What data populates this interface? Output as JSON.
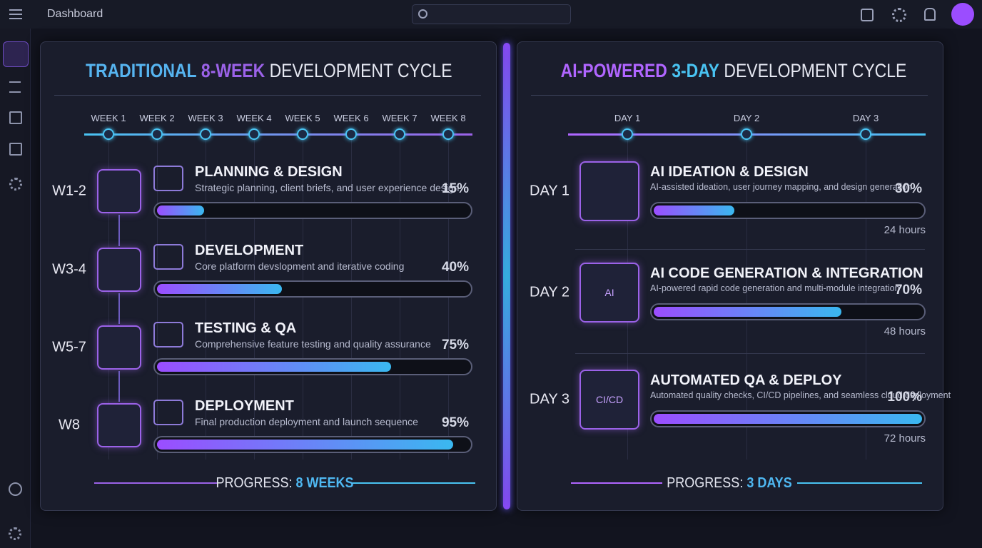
{
  "header": {
    "title": "Dashboard"
  },
  "panels": [
    {
      "title": [
        "TRADITIONAL",
        "8-WEEK",
        "DEVELOPMENT CYCLE"
      ],
      "timeline": [
        "WEEK 1",
        "WEEK 2",
        "WEEK 3",
        "WEEK 4",
        "WEEK 5",
        "WEEK 6",
        "WEEK 7",
        "WEEK 8"
      ],
      "stages": [
        {
          "period": "W1-2",
          "name": "PLANNING & DESIGN",
          "description": "Strategic planning, client briefs, and user experience design",
          "value": 15,
          "label": "15%"
        },
        {
          "period": "W3-4",
          "name": "DEVELOPMENT",
          "description": "Core platform devslopment and iterative coding",
          "value": 40,
          "label": "40%"
        },
        {
          "period": "W5-7",
          "name": "TESTING & QA",
          "description": "Comprehensive feature testing and quality assurance",
          "value": 75,
          "label": "75%"
        },
        {
          "period": "W8",
          "name": "DEPLOYMENT",
          "description": "Final production deployment and launch sequence",
          "value": 95,
          "label": "95%"
        }
      ],
      "progress": [
        "PROGRESS:",
        "8 WEEKS"
      ]
    },
    {
      "title": [
        "AI-POWERED",
        "3-DAY",
        "DEVELOPMENT CYCLE"
      ],
      "timeline": [
        "DAY 1",
        "DAY 2",
        "DAY 3"
      ],
      "stages": [
        {
          "period": "DAY 1",
          "name": "AI IDEATION & DESIGN",
          "description": "AI-assisted ideation, user journey mapping, and design generation",
          "value": 30,
          "label": "30%",
          "duration": "24 hours",
          "icon": ""
        },
        {
          "period": "DAY 2",
          "name": "AI CODE GENERATION & INTEGRATION",
          "description": "AI-powered rapid code generation and multi-module integration",
          "value": 70,
          "label": "70%",
          "duration": "48 hours",
          "icon": "AI"
        },
        {
          "period": "DAY 3",
          "name": "AUTOMATED QA & DEPLOY",
          "description": "Automated quality checks, CI/CD pipelines, and seamless cloud dsployment",
          "value": 100,
          "label": "100%",
          "duration": "72 hours",
          "icon": "CI/CD"
        }
      ],
      "progress": [
        "PROGRESS:",
        "3 DAYS"
      ]
    }
  ]
}
